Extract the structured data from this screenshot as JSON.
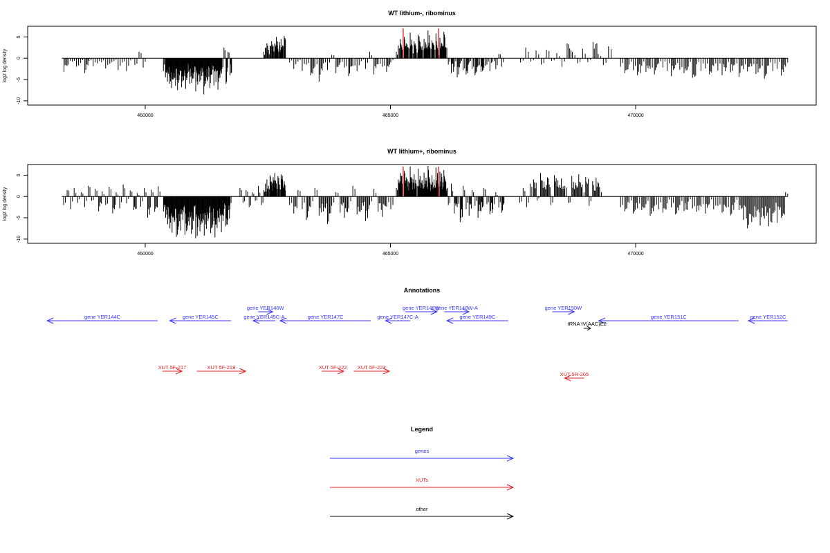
{
  "chart_data": [
    {
      "type": "bar",
      "title": "WT lithium-, ribominus",
      "ylabel": "log2 log density",
      "xlim": [
        458300,
        473100
      ],
      "ylim": [
        -11,
        7.5
      ],
      "x_ticks": [
        460000,
        465000,
        470000
      ],
      "x_tick_labels": [
        "460000",
        "465000",
        "470000"
      ],
      "y_ticks": [
        -10,
        -5,
        0,
        5
      ],
      "y_tick_labels": [
        "-10",
        "-5",
        "0",
        "5"
      ],
      "baseline_range": [
        458300,
        473100
      ],
      "regions": [
        {
          "x_range": [
            458300,
            460000
          ],
          "values": [
            -3.2,
            -1.5,
            -0.8,
            -2.0,
            -1.1,
            -3.5,
            -0.6,
            -1.9,
            -1.2,
            -0.9,
            -2.4,
            -1.3,
            -0.7,
            -2.8,
            -1.0,
            -3.0,
            -0.5,
            -1.6,
            1.5,
            -2.2
          ],
          "color": "#000000"
        },
        {
          "x_range": [
            460350,
            461750
          ],
          "values": [
            -3.0,
            -4.5,
            -5.5,
            -6.0,
            -7.0,
            -5.0,
            -6.5,
            -7.5,
            -4.0,
            -6.8,
            -5.2,
            -7.2,
            -3.5,
            -6.0,
            -5.8,
            -4.8,
            -7.8,
            -6.2,
            -5.5,
            -4.2,
            -8.5,
            -6.0,
            -5.0,
            -7.0,
            -3.8,
            -6.4,
            -5.6,
            -7.4,
            -4.6,
            -2.5,
            2.5,
            -6.0,
            1.5,
            -4.0
          ],
          "color": "#000000"
        },
        {
          "x_range": [
            462400,
            462850
          ],
          "values": [
            1.5,
            2.5,
            3.5,
            2.0,
            3.0,
            4.0,
            2.8,
            3.5,
            5.0,
            2.2,
            3.8,
            4.5,
            3.0,
            5.2
          ],
          "color": "#000000"
        },
        {
          "x_range": [
            462900,
            465050
          ],
          "values": [
            -1.0,
            -2.5,
            -0.8,
            -3.0,
            -1.5,
            -4.0,
            -2.0,
            -5.5,
            -1.2,
            -2.8,
            0.8,
            -3.5,
            -1.0,
            -2.2,
            -4.2,
            -1.8,
            -3.0,
            -0.7,
            -2.5,
            1.5,
            -3.8,
            -1.4,
            -2.0,
            -3.2,
            -1.0
          ],
          "color": "#000000"
        },
        {
          "x_range": [
            465100,
            466150
          ],
          "values": [
            1.5,
            3.0,
            4.5,
            2.0,
            5.0,
            3.5,
            2.5,
            6.0,
            3.0,
            4.0,
            2.2,
            5.5,
            3.8,
            2.8,
            4.6,
            3.2,
            6.5,
            2.5,
            4.2,
            3.0,
            5.8,
            2.0,
            4.8,
            3.4,
            6.2,
            2.6
          ],
          "color": "#000000"
        },
        {
          "x_range": [
            466150,
            467300
          ],
          "values": [
            -1.5,
            -3.5,
            -2.0,
            -4.5,
            -1.2,
            -2.8,
            -3.8,
            -1.0,
            -2.5,
            -4.0,
            -1.8,
            -3.2,
            -2.2,
            -1.5,
            -3.0,
            -0.8,
            -2.6,
            1.0,
            -2.0
          ],
          "color": "#000000"
        },
        {
          "x_range": [
            467600,
            469500
          ],
          "values": [
            -1.0,
            2.5,
            -0.8,
            1.8,
            -1.5,
            2.0,
            -0.6,
            1.2,
            -2.0,
            3.5,
            1.5,
            -1.2,
            2.2,
            -0.9,
            3.8,
            1.0,
            -1.6,
            2.8
          ],
          "color": "#000000"
        },
        {
          "x_range": [
            469650,
            473100
          ],
          "values": [
            -2.0,
            -3.5,
            -1.5,
            -2.8,
            -4.0,
            -1.8,
            -3.2,
            -2.5,
            -3.8,
            -1.2,
            -2.2,
            -3.0,
            -4.2,
            -1.6,
            -2.7,
            -3.5,
            -2.0,
            -4.6,
            -1.4,
            -3.0,
            -2.4,
            -3.8,
            -1.8,
            -2.9,
            -4.0,
            -2.2,
            -3.3,
            -1.5,
            -4.4,
            -2.6,
            -3.1,
            -1.9,
            -3.7,
            -2.3,
            -4.8,
            -1.7,
            -3.0,
            -2.5,
            -4.1,
            -2.0
          ],
          "color": "#000000"
        }
      ],
      "highlights": [
        {
          "x": 465260,
          "y": 7.0,
          "color": "#e41a1c"
        },
        {
          "x": 465980,
          "y": 7.0,
          "color": "#e41a1c"
        }
      ]
    },
    {
      "type": "bar",
      "title": "WT lithium+, ribominus",
      "ylabel": "log2 log density",
      "xlim": [
        458300,
        473100
      ],
      "ylim": [
        -11,
        7.5
      ],
      "x_ticks": [
        460000,
        465000,
        470000
      ],
      "x_tick_labels": [
        "460000",
        "465000",
        "470000"
      ],
      "y_ticks": [
        -10,
        -5,
        0,
        5
      ],
      "y_tick_labels": [
        "-10",
        "-5",
        "0",
        "5"
      ],
      "baseline_range": [
        458300,
        473100
      ],
      "regions": [
        {
          "x_range": [
            458300,
            460300
          ],
          "values": [
            -2.0,
            1.5,
            -3.0,
            2.0,
            -1.5,
            1.0,
            -2.5,
            2.5,
            -1.0,
            1.8,
            -3.5,
            1.2,
            -2.0,
            2.2,
            -4.0,
            1.0,
            -2.8,
            2.8,
            -1.6,
            1.4,
            -3.2,
            0.8,
            -2.4,
            2.0,
            -5.0,
            1.6,
            -3.6,
            2.4
          ],
          "color": "#000000"
        },
        {
          "x_range": [
            460350,
            461750
          ],
          "values": [
            -3.5,
            -5.0,
            -6.5,
            -7.5,
            -8.5,
            -6.0,
            -9.5,
            -7.0,
            -8.0,
            -5.5,
            -9.0,
            -7.8,
            -6.8,
            -8.8,
            -5.8,
            -9.8,
            -7.2,
            -8.2,
            -6.2,
            -9.2,
            -7.6,
            -5.2,
            -8.6,
            -6.6,
            -9.6,
            -7.4,
            -6.0,
            -8.4,
            -4.5,
            -7.0,
            -5.5,
            -3.0
          ],
          "color": "#000000"
        },
        {
          "x_range": [
            461900,
            462400
          ],
          "values": [
            2.0,
            -1.5,
            1.5,
            -2.5,
            1.0,
            -1.0,
            2.5,
            -2.0
          ],
          "color": "#000000"
        },
        {
          "x_range": [
            462400,
            462850
          ],
          "values": [
            1.5,
            3.0,
            4.0,
            2.5,
            5.0,
            3.5,
            4.5,
            5.5,
            3.0,
            4.8,
            2.8,
            5.2,
            4.0,
            3.6
          ],
          "color": "#000000"
        },
        {
          "x_range": [
            462900,
            465050
          ],
          "values": [
            -2.0,
            -4.0,
            1.5,
            -3.0,
            -5.5,
            -2.5,
            2.0,
            -4.5,
            -3.5,
            -6.5,
            -2.2,
            1.0,
            -3.8,
            -5.0,
            -2.8,
            2.5,
            -4.2,
            -3.2,
            -5.8,
            -2.0,
            1.8,
            -3.6,
            -4.8,
            -2.4,
            -3.0
          ],
          "color": "#000000"
        },
        {
          "x_range": [
            465100,
            466150
          ],
          "values": [
            2.0,
            4.0,
            5.5,
            3.0,
            6.0,
            4.5,
            3.5,
            7.0,
            4.2,
            5.2,
            3.0,
            6.5,
            4.8,
            3.8,
            5.6,
            4.4,
            7.2,
            3.2,
            5.0,
            4.0,
            6.8,
            3.0,
            5.8,
            4.6,
            6.2,
            3.4
          ],
          "color": "#000000"
        },
        {
          "x_range": [
            466150,
            467300
          ],
          "values": [
            -2.0,
            3.0,
            -4.0,
            -2.5,
            -6.0,
            2.5,
            -3.0,
            -4.5,
            1.5,
            -2.2,
            -5.0,
            -3.5,
            2.0,
            -1.8,
            -4.2,
            -3.0,
            1.0,
            -2.6,
            -3.8
          ],
          "color": "#000000"
        },
        {
          "x_range": [
            467600,
            469300
          ],
          "values": [
            -1.5,
            2.0,
            -2.5,
            3.0,
            4.0,
            -1.0,
            5.5,
            3.5,
            4.5,
            -2.0,
            5.0,
            3.8,
            4.2,
            2.5,
            -1.5,
            4.8,
            3.2,
            5.2,
            2.8,
            4.6,
            -2.2,
            3.6,
            4.4,
            2.2
          ],
          "color": "#000000"
        },
        {
          "x_range": [
            469650,
            473100
          ],
          "values": [
            -2.5,
            -3.5,
            -1.5,
            -4.0,
            -2.8,
            -3.2,
            -1.8,
            -4.5,
            -2.2,
            -3.0,
            -3.8,
            -1.6,
            -2.6,
            -4.2,
            -2.0,
            -3.4,
            -1.2,
            -2.8,
            -3.6,
            -2.4,
            -4.0,
            -1.8,
            -3.0,
            -2.2,
            -3.8,
            -2.6,
            -4.4,
            -1.4,
            -3.2,
            -5.5,
            -7.5,
            -6.0,
            -4.8,
            -6.8,
            -5.2,
            -7.0,
            -4.0,
            -6.2,
            -5.0,
            1.0
          ],
          "color": "#000000"
        }
      ],
      "highlights": [
        {
          "x": 465260,
          "y": 7.0,
          "color": "#e41a1c"
        },
        {
          "x": 465980,
          "y": 7.0,
          "color": "#e41a1c"
        }
      ]
    }
  ],
  "annotations": {
    "title": "Annotations",
    "colors": {
      "genes": "#3333ff",
      "xuts": "#e41a1c",
      "other": "#000000"
    },
    "genes": [
      {
        "label": "gene YER144C",
        "start": 458000,
        "end": 460250,
        "dir": "left",
        "row": 1
      },
      {
        "label": "gene YER145C",
        "start": 460500,
        "end": 461750,
        "dir": "left",
        "row": 1
      },
      {
        "label": "gene YER146W",
        "start": 462300,
        "end": 462600,
        "dir": "right",
        "row": 0
      },
      {
        "label": "gene YER145C-A",
        "start": 462200,
        "end": 462650,
        "dir": "left",
        "row": 1
      },
      {
        "label": "gene YER147C",
        "start": 462750,
        "end": 464600,
        "dir": "left",
        "row": 1
      },
      {
        "label": "gene YER147C-A",
        "start": 464900,
        "end": 465400,
        "dir": "left",
        "row": 1
      },
      {
        "label": "gene YER148W",
        "start": 465300,
        "end": 465950,
        "dir": "right",
        "row": 0
      },
      {
        "label": "gene YER148W-A",
        "start": 466100,
        "end": 466600,
        "dir": "right",
        "row": 0
      },
      {
        "label": "gene YER149C",
        "start": 466150,
        "end": 467400,
        "dir": "left",
        "row": 1
      },
      {
        "label": "gene YER150W",
        "start": 468300,
        "end": 468750,
        "dir": "right",
        "row": 0
      },
      {
        "label": "gene YER151C",
        "start": 469250,
        "end": 472100,
        "dir": "left",
        "row": 1
      },
      {
        "label": "gene YER152C",
        "start": 472300,
        "end": 473100,
        "dir": "left",
        "row": 1
      }
    ],
    "xuts": [
      {
        "label": "XUT 5F-217",
        "start": 460350,
        "end": 460750,
        "dir": "right",
        "row": 0
      },
      {
        "label": "XUT 5F-218",
        "start": 461050,
        "end": 462050,
        "dir": "right",
        "row": 0
      },
      {
        "label": "XUT 5F-222",
        "start": 463600,
        "end": 464050,
        "dir": "right",
        "row": 0
      },
      {
        "label": "XUT 5F-223",
        "start": 464250,
        "end": 464980,
        "dir": "right",
        "row": 0
      },
      {
        "label": "XUT 5R-205",
        "start": 468550,
        "end": 468950,
        "dir": "left",
        "row": 1
      }
    ],
    "other": [
      {
        "label": "tRNA tV(AAC)E2",
        "start": 468940,
        "end": 469080,
        "dir": "right",
        "row": 0
      }
    ]
  },
  "legend": {
    "title": "Legend",
    "items": [
      {
        "label": "genes",
        "color": "#3333ff"
      },
      {
        "label": "XUTs",
        "color": "#e41a1c"
      },
      {
        "label": "other",
        "color": "#000000"
      }
    ]
  }
}
